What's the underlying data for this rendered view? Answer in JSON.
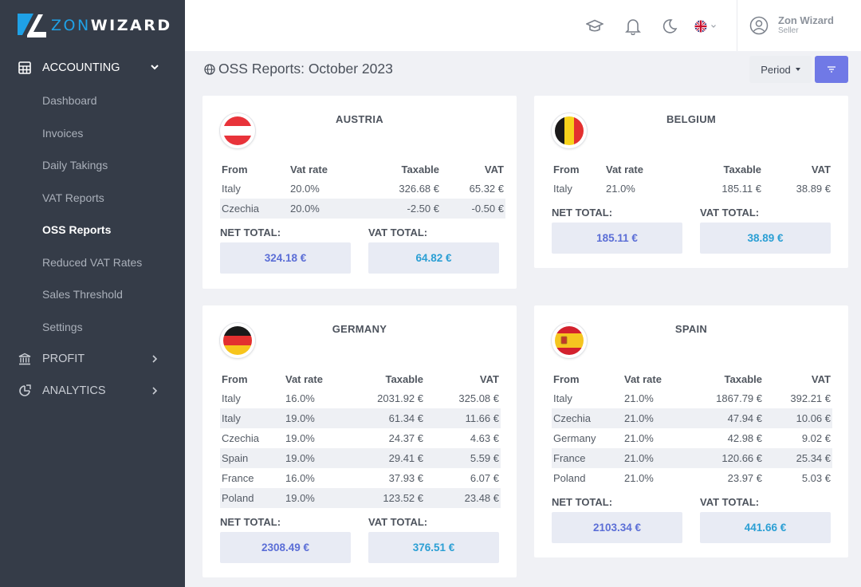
{
  "brand": {
    "part1": "ZON",
    "part2": "WIZARD"
  },
  "sidebar": {
    "groups": [
      {
        "label": "ACCOUNTING",
        "icon": "calculator-icon"
      },
      {
        "label": "PROFIT",
        "icon": "bank-icon"
      },
      {
        "label": "ANALYTICS",
        "icon": "analytics-icon"
      }
    ],
    "items": [
      {
        "label": "Dashboard"
      },
      {
        "label": "Invoices"
      },
      {
        "label": "Daily Takings"
      },
      {
        "label": "VAT Reports"
      },
      {
        "label": "OSS Reports"
      },
      {
        "label": "Reduced VAT Rates"
      },
      {
        "label": "Sales Threshold"
      },
      {
        "label": "Settings"
      }
    ],
    "active_item": "OSS Reports"
  },
  "topbar": {
    "icons": [
      "graduation-cap-icon",
      "bell-icon",
      "moon-icon",
      "uk-flag-icon"
    ],
    "user": {
      "name": "Zon Wizard",
      "role": "Seller"
    }
  },
  "page": {
    "title": "OSS Reports: October 2023",
    "period_label": "Period"
  },
  "table_headers": {
    "from": "From",
    "rate": "Vat rate",
    "taxable": "Taxable",
    "vat": "VAT"
  },
  "total_labels": {
    "net": "NET TOTAL:",
    "vat": "VAT TOTAL:"
  },
  "countries": [
    {
      "name": "AUSTRIA",
      "rows": [
        {
          "from": "Italy",
          "rate": "20.0%",
          "taxable": "326.68 €",
          "vat": "65.32 €"
        },
        {
          "from": "Czechia",
          "rate": "20.0%",
          "taxable": "-2.50 €",
          "vat": "-0.50 €"
        }
      ],
      "net_total": "324.18 €",
      "vat_total": "64.82 €"
    },
    {
      "name": "BELGIUM",
      "rows": [
        {
          "from": "Italy",
          "rate": "21.0%",
          "taxable": "185.11 €",
          "vat": "38.89 €"
        }
      ],
      "net_total": "185.11 €",
      "vat_total": "38.89 €"
    },
    {
      "name": "GERMANY",
      "rows": [
        {
          "from": "Italy",
          "rate": "16.0%",
          "taxable": "2031.92 €",
          "vat": "325.08 €"
        },
        {
          "from": "Italy",
          "rate": "19.0%",
          "taxable": "61.34 €",
          "vat": "11.66 €"
        },
        {
          "from": "Czechia",
          "rate": "19.0%",
          "taxable": "24.37 €",
          "vat": "4.63 €"
        },
        {
          "from": "Spain",
          "rate": "19.0%",
          "taxable": "29.41 €",
          "vat": "5.59 €"
        },
        {
          "from": "France",
          "rate": "16.0%",
          "taxable": "37.93 €",
          "vat": "6.07 €"
        },
        {
          "from": "Poland",
          "rate": "19.0%",
          "taxable": "123.52 €",
          "vat": "23.48 €"
        }
      ],
      "net_total": "2308.49 €",
      "vat_total": "376.51 €"
    },
    {
      "name": "SPAIN",
      "rows": [
        {
          "from": "Italy",
          "rate": "21.0%",
          "taxable": "1867.79 €",
          "vat": "392.21 €"
        },
        {
          "from": "Czechia",
          "rate": "21.0%",
          "taxable": "47.94 €",
          "vat": "10.06 €"
        },
        {
          "from": "Germany",
          "rate": "21.0%",
          "taxable": "42.98 €",
          "vat": "9.02 €"
        },
        {
          "from": "France",
          "rate": "21.0%",
          "taxable": "120.66 €",
          "vat": "25.34 €"
        },
        {
          "from": "Poland",
          "rate": "21.0%",
          "taxable": "23.97 €",
          "vat": "5.03 €"
        }
      ],
      "net_total": "2103.34 €",
      "vat_total": "441.66 €"
    }
  ],
  "colors": {
    "sidebar_bg": "#353c48",
    "accent": "#7079e6",
    "net_text": "#5b6ed6",
    "vat_text": "#2b9fd4",
    "brand_blue": "#1fa1e6"
  }
}
